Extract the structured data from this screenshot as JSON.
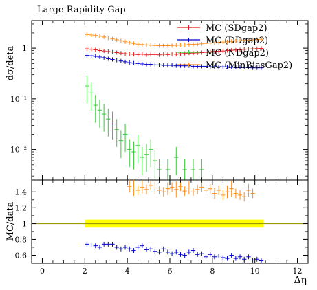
{
  "chart_data": [
    {
      "type": "scatter",
      "title": "Large Rapidity Gap",
      "xlabel": "",
      "ylabel": "dσ/deta",
      "yscale": "log",
      "xlim": [
        -0.5,
        12.5
      ],
      "ylim": [
        0.0025,
        3.5
      ],
      "ytick_labels": [
        "1",
        "10⁻¹",
        "10⁻²"
      ],
      "yticks": [
        1,
        0.1,
        0.01
      ],
      "legend_placement": "top-right",
      "series": [
        {
          "name": "MC (SDgap2)",
          "color": "#e41a1c",
          "x": [
            2.1,
            2.3,
            2.5,
            2.7,
            2.9,
            3.1,
            3.3,
            3.5,
            3.7,
            3.9,
            4.1,
            4.3,
            4.5,
            4.7,
            4.9,
            5.1,
            5.3,
            5.5,
            5.7,
            5.9,
            6.1,
            6.3,
            6.5,
            6.7,
            6.9,
            7.1,
            7.3,
            7.5,
            7.7,
            7.9,
            8.1,
            8.3,
            8.5,
            8.7,
            8.9,
            9.1,
            9.3,
            9.5,
            9.7,
            9.9,
            10.1,
            10.3
          ],
          "y": [
            0.97,
            0.95,
            0.93,
            0.9,
            0.88,
            0.86,
            0.84,
            0.82,
            0.8,
            0.78,
            0.77,
            0.76,
            0.75,
            0.76,
            0.74,
            0.75,
            0.75,
            0.74,
            0.76,
            0.75,
            0.77,
            0.76,
            0.78,
            0.79,
            0.8,
            0.8,
            0.81,
            0.82,
            0.83,
            0.85,
            0.86,
            0.87,
            0.88,
            0.9,
            0.91,
            0.92,
            0.93,
            0.95,
            0.96,
            0.97,
            0.98,
            0.99
          ]
        },
        {
          "name": "MC (DDgap2)",
          "color": "#0000cc",
          "x": [
            2.1,
            2.3,
            2.5,
            2.7,
            2.9,
            3.1,
            3.3,
            3.5,
            3.7,
            3.9,
            4.1,
            4.3,
            4.5,
            4.7,
            4.9,
            5.1,
            5.3,
            5.5,
            5.7,
            5.9,
            6.1,
            6.3,
            6.5,
            6.7,
            6.9,
            7.1,
            7.3,
            7.5,
            7.7,
            7.9,
            8.1,
            8.3,
            8.5,
            8.7,
            8.9,
            9.1,
            9.3,
            9.5,
            9.7,
            9.9,
            10.1,
            10.3
          ],
          "y": [
            0.72,
            0.71,
            0.69,
            0.67,
            0.65,
            0.62,
            0.6,
            0.58,
            0.56,
            0.54,
            0.52,
            0.51,
            0.5,
            0.49,
            0.48,
            0.48,
            0.47,
            0.47,
            0.46,
            0.46,
            0.46,
            0.45,
            0.45,
            0.45,
            0.45,
            0.44,
            0.44,
            0.44,
            0.44,
            0.43,
            0.43,
            0.43,
            0.43,
            0.43,
            0.42,
            0.42,
            0.42,
            0.42,
            0.42,
            0.41,
            0.41,
            0.41
          ]
        },
        {
          "name": "MC (NDgap2)",
          "color": "#33cc33",
          "x": [
            2.1,
            2.3,
            2.5,
            2.7,
            2.9,
            3.1,
            3.3,
            3.5,
            3.7,
            3.9,
            4.1,
            4.3,
            4.5,
            4.7,
            4.9,
            5.1,
            5.3,
            5.5,
            5.9,
            6.3,
            6.7,
            7.1,
            7.5
          ],
          "y": [
            0.18,
            0.13,
            0.075,
            0.06,
            0.05,
            0.04,
            0.035,
            0.025,
            0.015,
            0.02,
            0.01,
            0.009,
            0.012,
            0.007,
            0.008,
            0.01,
            0.006,
            0.004,
            0.004,
            0.007,
            0.004,
            0.004,
            0.004
          ]
        },
        {
          "name": "MC (MinBiasGap2)",
          "color": "#ff8c1a",
          "x": [
            2.1,
            2.3,
            2.5,
            2.7,
            2.9,
            3.1,
            3.3,
            3.5,
            3.7,
            3.9,
            4.1,
            4.3,
            4.5,
            4.7,
            4.9,
            5.1,
            5.3,
            5.5,
            5.7,
            5.9,
            6.1,
            6.3,
            6.5,
            6.7,
            6.9,
            7.1,
            7.3,
            7.5,
            7.7,
            7.9,
            8.1,
            8.3,
            8.5,
            8.7,
            8.9,
            9.1,
            9.3,
            9.5,
            9.7,
            9.9,
            10.1,
            10.3
          ],
          "y": [
            1.85,
            1.82,
            1.78,
            1.72,
            1.66,
            1.58,
            1.52,
            1.46,
            1.4,
            1.34,
            1.28,
            1.24,
            1.2,
            1.18,
            1.16,
            1.14,
            1.13,
            1.12,
            1.12,
            1.12,
            1.13,
            1.14,
            1.15,
            1.16,
            1.18,
            1.19,
            1.2,
            1.22,
            1.24,
            1.26,
            1.28,
            1.3,
            1.32,
            1.34,
            1.36,
            1.38,
            1.4,
            1.42,
            1.44,
            1.46,
            1.48,
            1.5
          ]
        }
      ]
    },
    {
      "type": "scatter",
      "xlabel": "Δη",
      "ylabel": "MC/data",
      "xlim": [
        -0.5,
        12.5
      ],
      "ylim": [
        0.5,
        1.55
      ],
      "xticks": [
        0,
        2,
        4,
        6,
        8,
        10,
        12
      ],
      "yticks": [
        0.6,
        0.8,
        1,
        1.2,
        1.4
      ],
      "ytick_labels": [
        "0.6",
        "0.8",
        "1",
        "1.2",
        "1.4"
      ],
      "reference_line": 1,
      "reference_color": "#999900",
      "band": {
        "x": [
          2.0,
          10.4
        ],
        "y": [
          0.95,
          1.05
        ],
        "color": "#ffff00"
      },
      "series": [
        {
          "color": "#ff8c1a",
          "x": [
            4.1,
            4.3,
            4.5,
            4.7,
            4.9,
            5.1,
            5.3,
            5.5,
            5.7,
            5.9,
            6.1,
            6.3,
            6.5,
            6.7,
            6.9,
            7.1,
            7.3,
            7.5,
            7.7,
            7.9,
            8.1,
            8.3,
            8.5,
            8.7,
            8.9,
            9.1,
            9.3,
            9.5,
            9.7,
            9.9
          ],
          "y": [
            1.47,
            1.45,
            1.42,
            1.46,
            1.43,
            1.48,
            1.45,
            1.42,
            1.4,
            1.44,
            1.46,
            1.43,
            1.47,
            1.41,
            1.45,
            1.4,
            1.43,
            1.46,
            1.42,
            1.44,
            1.38,
            1.42,
            1.36,
            1.4,
            1.44,
            1.38,
            1.36,
            1.34,
            1.42,
            1.38
          ],
          "err": [
            0.08,
            0.1,
            0.06,
            0.08,
            0.06,
            0.06,
            0.08,
            0.05,
            0.06,
            0.08,
            0.06,
            0.1,
            0.06,
            0.06,
            0.08,
            0.05,
            0.06,
            0.06,
            0.07,
            0.06,
            0.07,
            0.06,
            0.06,
            0.08,
            0.1,
            0.06,
            0.06,
            0.06,
            0.08,
            0.06
          ]
        },
        {
          "color": "#0000cc",
          "x": [
            2.1,
            2.3,
            2.5,
            2.7,
            2.9,
            3.1,
            3.3,
            3.5,
            3.7,
            3.9,
            4.1,
            4.3,
            4.5,
            4.7,
            4.9,
            5.1,
            5.3,
            5.5,
            5.7,
            5.9,
            6.1,
            6.3,
            6.5,
            6.7,
            6.9,
            7.1,
            7.3,
            7.5,
            7.7,
            7.9,
            8.1,
            8.3,
            8.5,
            8.7,
            8.9,
            9.1,
            9.3,
            9.5,
            9.7,
            9.9,
            10.1,
            10.3
          ],
          "y": [
            0.74,
            0.73,
            0.72,
            0.7,
            0.74,
            0.74,
            0.74,
            0.7,
            0.68,
            0.7,
            0.68,
            0.66,
            0.7,
            0.72,
            0.67,
            0.68,
            0.65,
            0.64,
            0.68,
            0.64,
            0.62,
            0.64,
            0.61,
            0.6,
            0.64,
            0.66,
            0.61,
            0.62,
            0.58,
            0.61,
            0.58,
            0.59,
            0.57,
            0.56,
            0.6,
            0.56,
            0.58,
            0.55,
            0.58,
            0.54,
            0.55,
            0.53
          ],
          "err": [
            0.03,
            0.03,
            0.03,
            0.03,
            0.03,
            0.03,
            0.03,
            0.03,
            0.03,
            0.03,
            0.03,
            0.03,
            0.03,
            0.03,
            0.03,
            0.03,
            0.03,
            0.03,
            0.03,
            0.03,
            0.03,
            0.03,
            0.03,
            0.03,
            0.03,
            0.03,
            0.03,
            0.03,
            0.03,
            0.03,
            0.03,
            0.03,
            0.03,
            0.03,
            0.03,
            0.03,
            0.03,
            0.03,
            0.03,
            0.03,
            0.03,
            0.03
          ]
        }
      ]
    }
  ]
}
